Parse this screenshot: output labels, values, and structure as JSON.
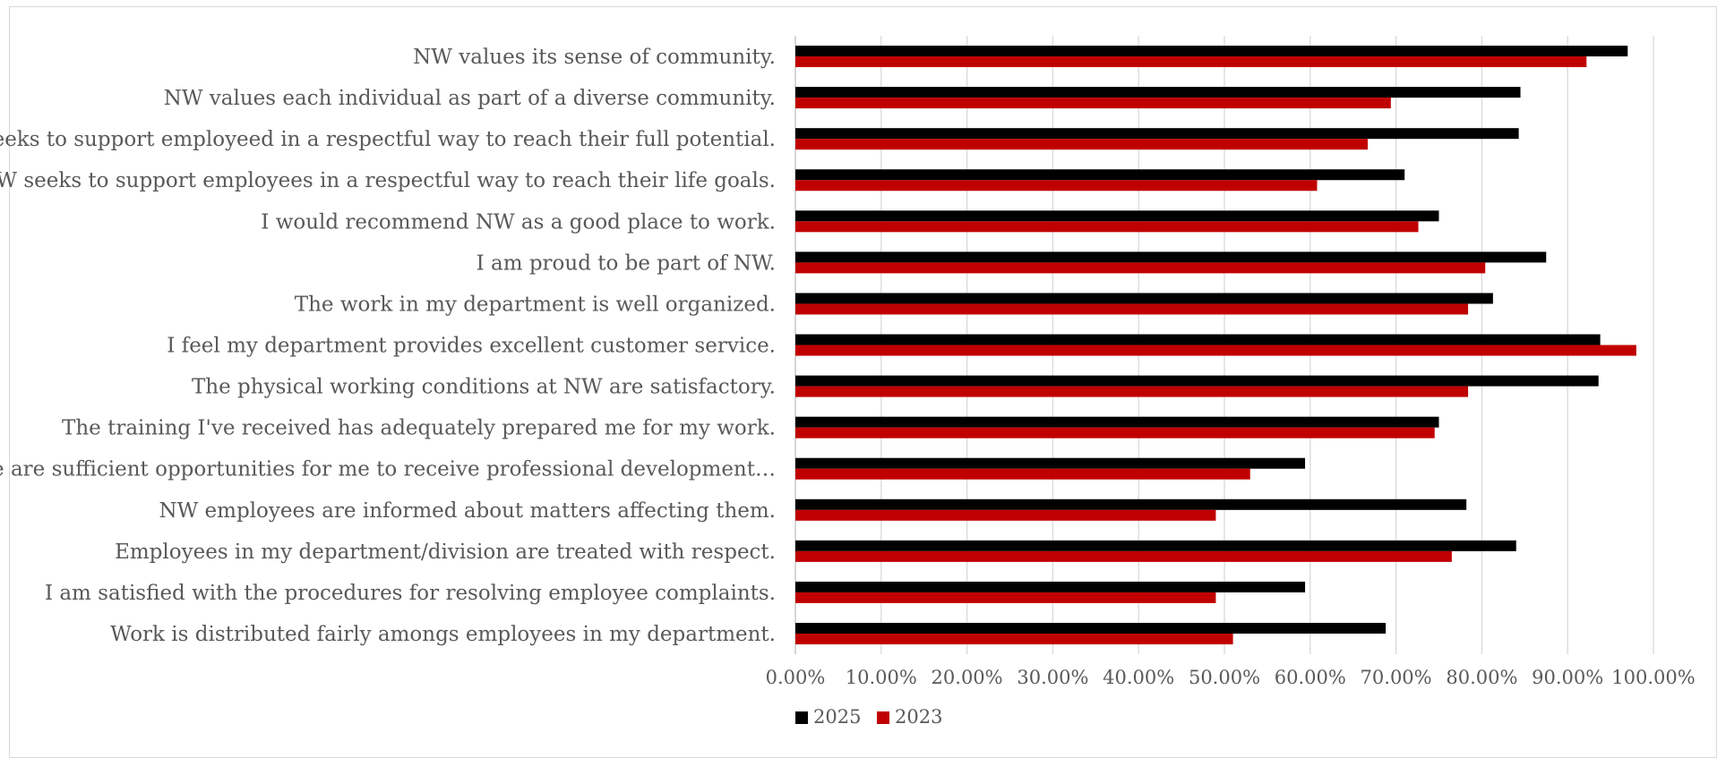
{
  "chart_data": {
    "type": "bar",
    "orientation": "horizontal",
    "categories": [
      "NW values its sense of community.",
      "NW values each individual as part of a diverse community.",
      "NW seeks to support employeed in a respectful way to reach their full potential.",
      "NW seeks to support employees in a respectful way to reach their life goals.",
      "I would recommend NW as a good place to work.",
      "I am proud to be part of NW.",
      "The work in my department is well organized.",
      "I feel my department provides excellent customer service.",
      "The physical working conditions at NW are satisfactory.",
      "The training I've received has adequately prepared me for my work.",
      "There are sufficient opportunities for me to receive professional development…",
      "NW employees are informed about matters affecting them.",
      "Employees in my department/division are treated with respect.",
      "I am satisfied with the procedures for resolving employee complaints.",
      "Work is distributed fairly amongs employees in my department."
    ],
    "series": [
      {
        "name": "2025",
        "color": "#000000",
        "values": [
          0.97,
          0.845,
          0.843,
          0.71,
          0.75,
          0.875,
          0.813,
          0.938,
          0.936,
          0.75,
          0.594,
          0.782,
          0.84,
          0.594,
          0.688
        ]
      },
      {
        "name": "2023",
        "color": "#c00000",
        "values": [
          0.922,
          0.694,
          0.667,
          0.608,
          0.726,
          0.804,
          0.784,
          0.98,
          0.784,
          0.745,
          0.53,
          0.49,
          0.765,
          0.49,
          0.51
        ]
      }
    ],
    "xlim": [
      0,
      1
    ],
    "x_ticks": [
      "0.00%",
      "10.00%",
      "20.00%",
      "30.00%",
      "40.00%",
      "50.00%",
      "60.00%",
      "70.00%",
      "80.00%",
      "90.00%",
      "100.00%"
    ],
    "gridlines": true,
    "legend_position": "bottom",
    "title": "",
    "xlabel": "",
    "ylabel": ""
  }
}
